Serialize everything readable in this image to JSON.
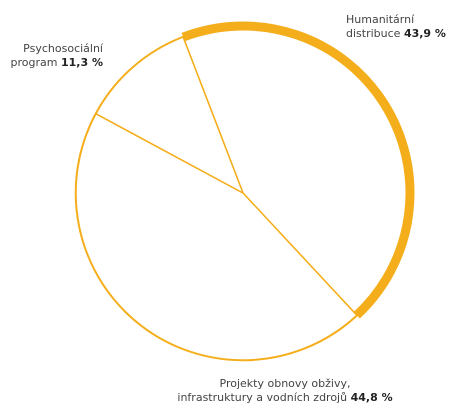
{
  "chart_data": {
    "type": "pie",
    "title": "",
    "slices": [
      {
        "label_line1": "Humanitární",
        "label_line2": "distribuce",
        "value": 43.9,
        "value_text": "43,9 %"
      },
      {
        "label_line1": "Projekty obnovy obživy,",
        "label_line2": "infrastruktury a vodních zdrojů",
        "value": 44.8,
        "value_text": "44,8 %"
      },
      {
        "label_line1": "Psychosociální",
        "label_line2": "program",
        "value": 11.3,
        "value_text": "11,3 %"
      }
    ],
    "colors": {
      "stroke": "#F5AE1B",
      "fill": "#FFFFFF"
    }
  }
}
